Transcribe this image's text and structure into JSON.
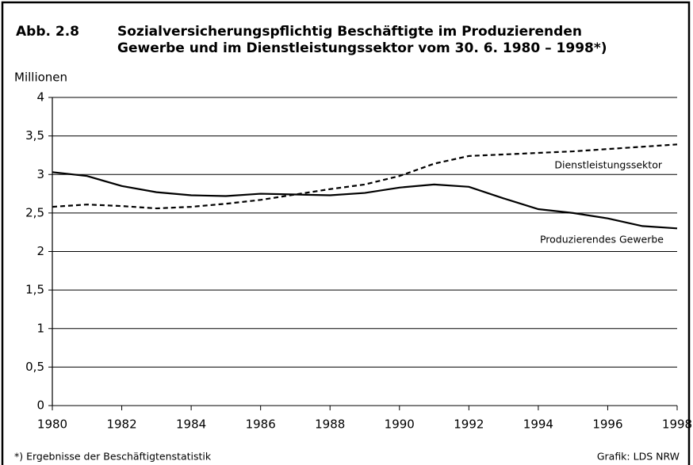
{
  "chart_data": {
    "type": "line",
    "figure_label": "Abb. 2.8",
    "title_lines": [
      "Sozialversicherungspflichtig Beschäftigte im Produzierenden",
      "Gewerbe und im Dienstleistungssektor vom 30. 6. 1980 – 1998*)"
    ],
    "y_label": "Millionen",
    "x": [
      1980,
      1981,
      1982,
      1983,
      1984,
      1985,
      1986,
      1987,
      1988,
      1989,
      1990,
      1991,
      1992,
      1993,
      1994,
      1995,
      1996,
      1997,
      1998
    ],
    "series": [
      {
        "name": "Produzierendes Gewerbe",
        "color": "#000000",
        "dashed": false,
        "values": [
          3.03,
          2.98,
          2.85,
          2.77,
          2.73,
          2.72,
          2.75,
          2.74,
          2.73,
          2.76,
          2.83,
          2.87,
          2.84,
          2.69,
          2.55,
          2.5,
          2.43,
          2.33,
          2.3
        ]
      },
      {
        "name": "Dienstleistungssektor",
        "color": "#000000",
        "dashed": true,
        "values": [
          2.58,
          2.61,
          2.59,
          2.56,
          2.58,
          2.62,
          2.67,
          2.74,
          2.81,
          2.87,
          2.98,
          3.14,
          3.24,
          3.26,
          3.28,
          3.3,
          3.33,
          3.36,
          3.39
        ]
      }
    ],
    "xlim": [
      1980,
      1998
    ],
    "xticks": [
      1980,
      1982,
      1984,
      1986,
      1988,
      1990,
      1992,
      1994,
      1996,
      1998
    ],
    "ylim": [
      0,
      4
    ],
    "yticks": [
      0,
      {
        "value": 0.5,
        "label": "0,5"
      },
      1,
      {
        "value": 1.5,
        "label": "1,5"
      },
      2,
      {
        "value": 2.5,
        "label": "2,5"
      },
      3,
      {
        "value": 3.5,
        "label": "3,5"
      },
      4
    ],
    "grid": true,
    "footnote": "*) Ergebnisse der Beschäftigtenstatistik",
    "source": "Grafik: LDS NRW"
  }
}
